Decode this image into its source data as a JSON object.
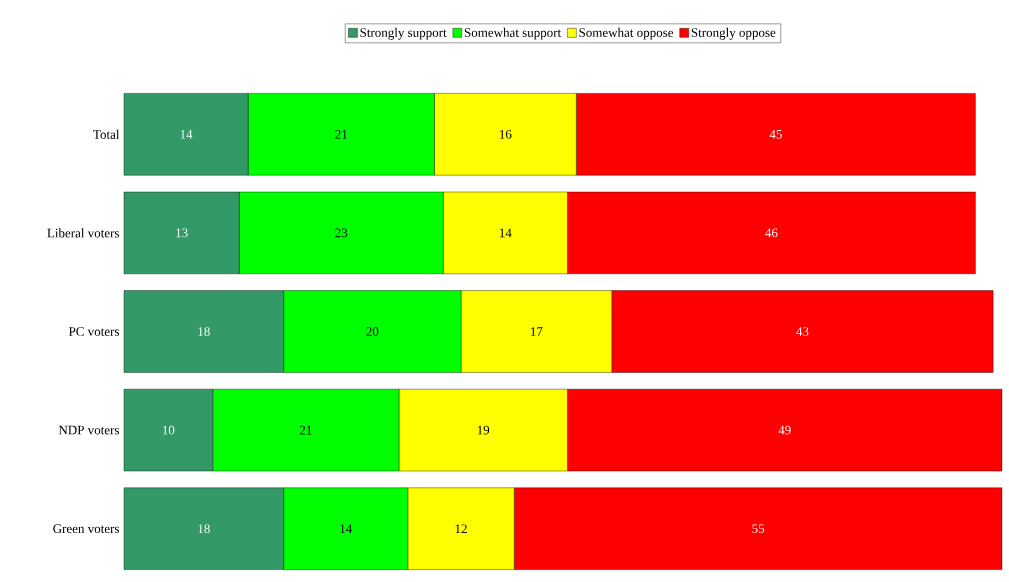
{
  "chart_data": {
    "type": "bar",
    "orientation": "horizontal",
    "stacked": true,
    "data_labels": true,
    "legend": "top",
    "categories": [
      "Total",
      "Liberal voters",
      "PC voters",
      "NDP voters",
      "Green voters"
    ],
    "series": [
      {
        "name": "Strongly support",
        "color": "#339966",
        "values": [
          14,
          13,
          18,
          10,
          18
        ]
      },
      {
        "name": "Somewhat support",
        "color": "#00ff00",
        "values": [
          21,
          23,
          20,
          21,
          14
        ]
      },
      {
        "name": "Somewhat oppose",
        "color": "#ffff00",
        "values": [
          16,
          14,
          17,
          19,
          12
        ]
      },
      {
        "name": "Strongly oppose",
        "color": "#ff0000",
        "values": [
          45,
          46,
          43,
          49,
          55
        ]
      }
    ]
  }
}
